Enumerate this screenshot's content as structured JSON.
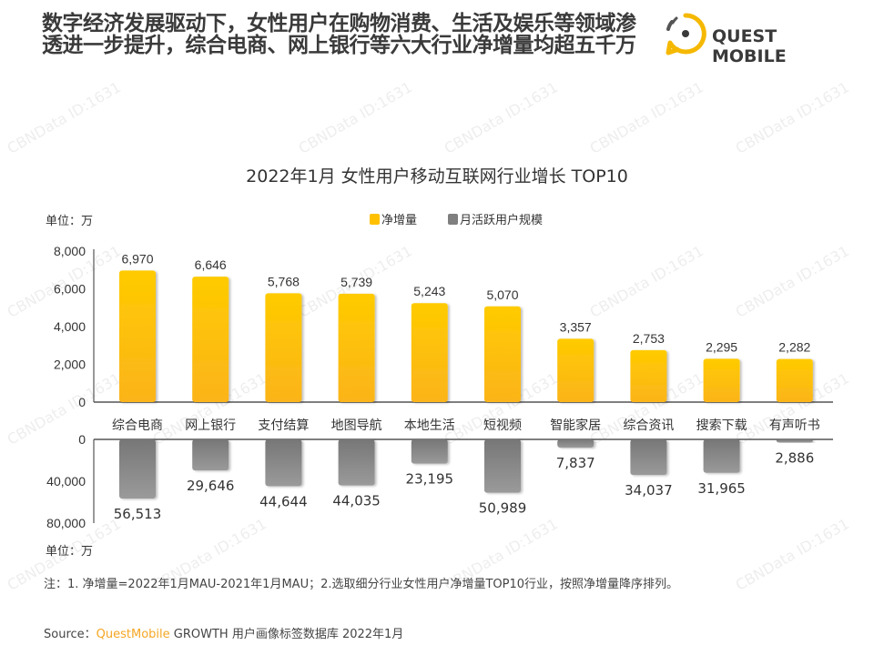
{
  "headline": "数字经济发展驱动下，女性用户在购物消费、生活及娱乐等领域渗透进一步提升，综合电商、网上银行等六大行业净增量均超五千万",
  "brand": {
    "logo_text": "QUEST MOBILE",
    "logo_icon": "quest-mobile-logo-icon",
    "accent": "#f5b800"
  },
  "watermark": "CBNData ID:1631",
  "chart_data": {
    "type": "bar",
    "title": "2022年1月 女性用户移动互联网行业增长 TOP10",
    "unit_top": "单位：万",
    "unit_bottom": "单位：万",
    "categories": [
      "综合电商",
      "网上银行",
      "支付结算",
      "地图导航",
      "本地生活",
      "短视频",
      "智能家居",
      "综合资讯",
      "搜索下载",
      "有声听书"
    ],
    "series": [
      {
        "name": "净增量",
        "color": "#ffc000",
        "values": [
          6970,
          6646,
          5768,
          5739,
          5243,
          5070,
          3357,
          2753,
          2295,
          2282
        ],
        "labels": [
          "6,970",
          "6,646",
          "5,768",
          "5,739",
          "5,243",
          "5,070",
          "3,357",
          "2,753",
          "2,295",
          "2,282"
        ],
        "axis": {
          "ylim": [
            0,
            8000
          ],
          "ticks": [
            "0",
            "2,000",
            "4,000",
            "6,000",
            "8,000"
          ],
          "tick_values": [
            0,
            2000,
            4000,
            6000,
            8000
          ]
        }
      },
      {
        "name": "月活跃用户规模",
        "color": "#7f7f7f",
        "values": [
          56513,
          29646,
          44644,
          44035,
          23195,
          50989,
          7837,
          34037,
          31965,
          2886
        ],
        "labels": [
          "56,513",
          "29,646",
          "44,644",
          "44,035",
          "23,195",
          "50,989",
          "7,837",
          "34,037",
          "31,965",
          "2,886"
        ],
        "axis": {
          "ylim": [
            0,
            80000
          ],
          "inverted": true,
          "ticks": [
            "0",
            "40,000",
            "80,000"
          ],
          "tick_values": [
            0,
            40000,
            80000
          ]
        }
      }
    ],
    "legend": "top-center",
    "grid": false
  },
  "note": "注：1. 净增量=2022年1月MAU-2021年1月MAU；2.选取细分行业女性用户净增量TOP10行业，按照净增量降序排列。",
  "source": {
    "prefix": "Source：",
    "brand": "QuestMobile",
    "rest": " GROWTH 用户画像标签数据库 2022年1月"
  }
}
